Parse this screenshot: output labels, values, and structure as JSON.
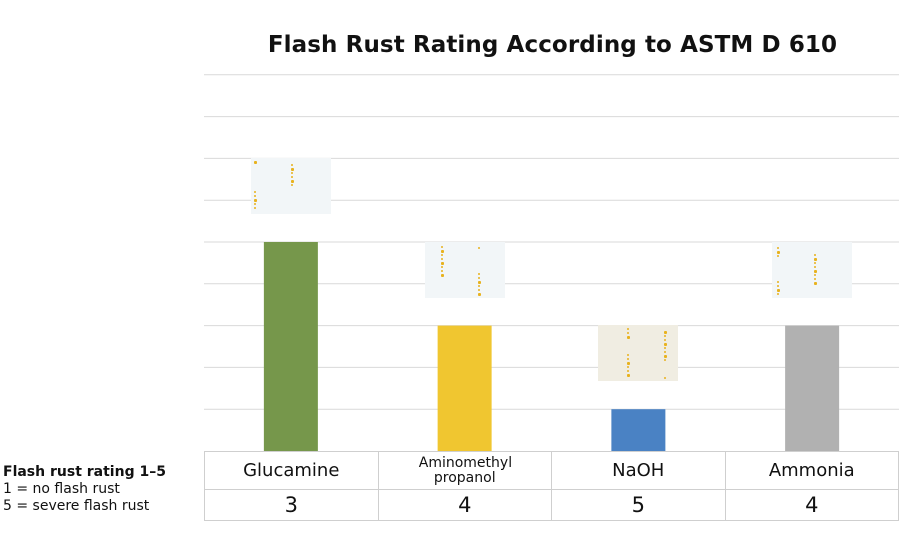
{
  "chart_data": {
    "type": "bar",
    "title": "Flash Rust Rating According to ASTM D 610",
    "categories": [
      "Glucamine",
      "Aminomethyl propanol",
      "NaOH",
      "Ammonia"
    ],
    "ratings": [
      "3",
      "4",
      "5",
      "4"
    ],
    "values": [
      5,
      3,
      1,
      3
    ],
    "ylim": [
      0,
      9
    ],
    "grid": true,
    "colors": [
      "#76974b",
      "#f0c630",
      "#4a82c4",
      "#b1b1b1"
    ],
    "swatch_colors": [
      "#f2f6f8",
      "#f2f6f8",
      "#f0ede2",
      "#f2f6f8"
    ]
  },
  "legend_note": {
    "title": "Flash rust rating 1–5",
    "line1": "1 = no flash rust",
    "line2": "5 = severe flash rust"
  }
}
